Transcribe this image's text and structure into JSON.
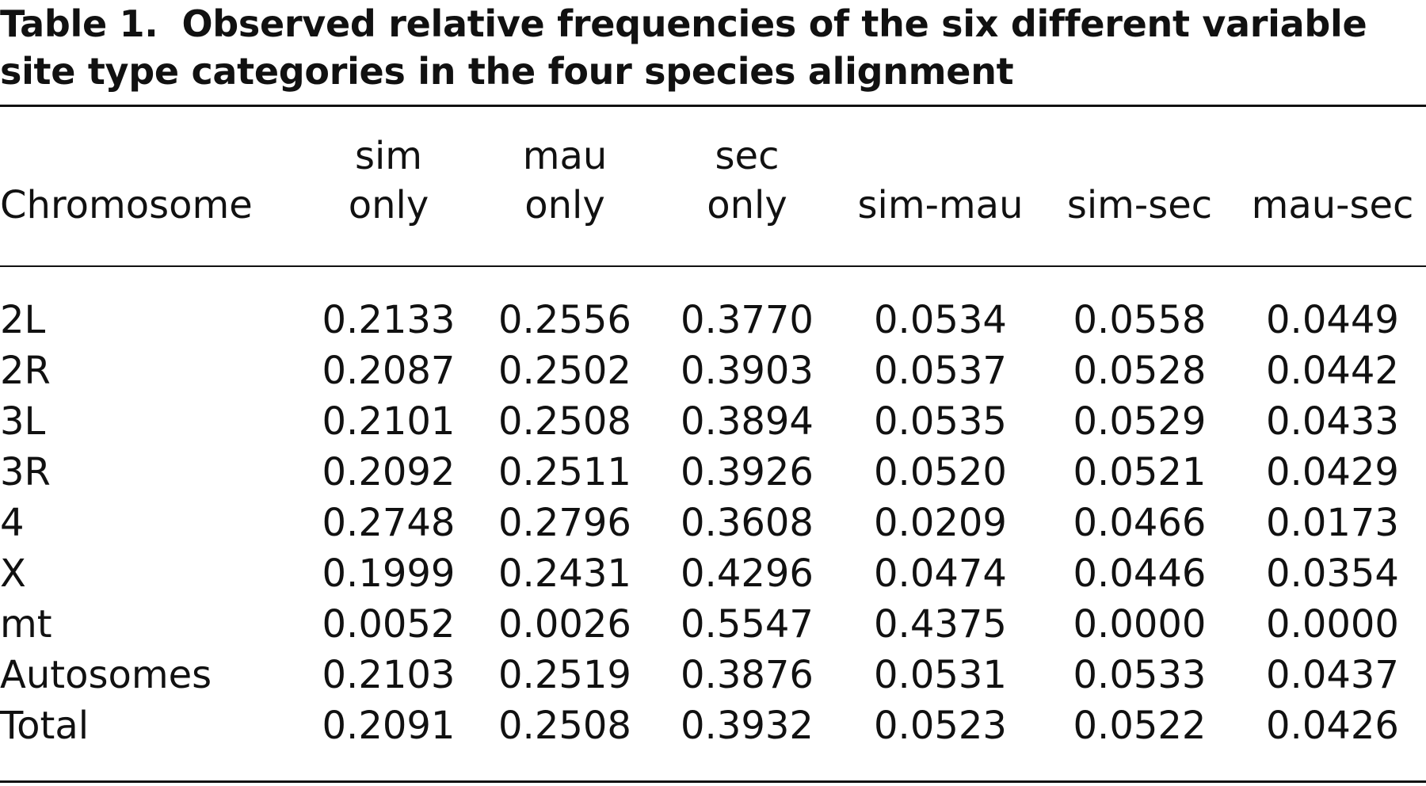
{
  "caption": {
    "label": "Table 1.",
    "title": "Observed relative frequencies of the six different variable site type categories in the four species alignment"
  },
  "table": {
    "header": [
      [
        "Chromosome"
      ],
      [
        "sim",
        "only"
      ],
      [
        "mau",
        "only"
      ],
      [
        "sec",
        "only"
      ],
      [
        "sim-mau"
      ],
      [
        "sim-sec"
      ],
      [
        "mau-sec"
      ]
    ],
    "rows": [
      [
        "2L",
        "0.2133",
        "0.2556",
        "0.3770",
        "0.0534",
        "0.0558",
        "0.0449"
      ],
      [
        "2R",
        "0.2087",
        "0.2502",
        "0.3903",
        "0.0537",
        "0.0528",
        "0.0442"
      ],
      [
        "3L",
        "0.2101",
        "0.2508",
        "0.3894",
        "0.0535",
        "0.0529",
        "0.0433"
      ],
      [
        "3R",
        "0.2092",
        "0.2511",
        "0.3926",
        "0.0520",
        "0.0521",
        "0.0429"
      ],
      [
        "4",
        "0.2748",
        "0.2796",
        "0.3608",
        "0.0209",
        "0.0466",
        "0.0173"
      ],
      [
        "X",
        "0.1999",
        "0.2431",
        "0.4296",
        "0.0474",
        "0.0446",
        "0.0354"
      ],
      [
        "mt",
        "0.0052",
        "0.0026",
        "0.5547",
        "0.4375",
        "0.0000",
        "0.0000"
      ],
      [
        "Autosomes",
        "0.2103",
        "0.2519",
        "0.3876",
        "0.0531",
        "0.0533",
        "0.0437"
      ],
      [
        "Total",
        "0.2091",
        "0.2508",
        "0.3932",
        "0.0523",
        "0.0522",
        "0.0426"
      ]
    ]
  }
}
